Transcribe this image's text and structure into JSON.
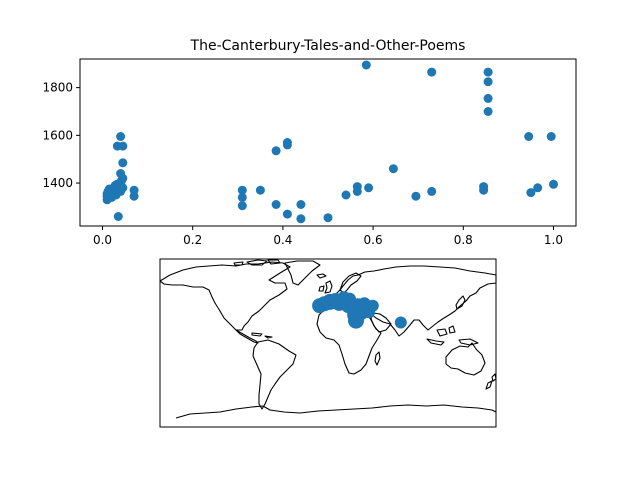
{
  "chart_data": [
    {
      "type": "scatter",
      "title": "The-Canterbury-Tales-and-Other-Poems",
      "xlabel": "",
      "ylabel": "",
      "xlim": [
        -0.05,
        1.05
      ],
      "ylim": [
        1220,
        1920
      ],
      "x_ticks": [
        0.0,
        0.2,
        0.4,
        0.6,
        0.8,
        1.0
      ],
      "x_tick_labels": [
        "0.0",
        "0.2",
        "0.4",
        "0.6",
        "0.8",
        "1.0"
      ],
      "y_ticks": [
        1400,
        1600,
        1800
      ],
      "y_tick_labels": [
        "1400",
        "1600",
        "1800"
      ],
      "marker_color": "#1f77b4",
      "grid": false,
      "points": [
        {
          "x": 0.01,
          "y": 1355
        },
        {
          "x": 0.01,
          "y": 1345
        },
        {
          "x": 0.01,
          "y": 1330
        },
        {
          "x": 0.012,
          "y": 1365
        },
        {
          "x": 0.015,
          "y": 1375
        },
        {
          "x": 0.02,
          "y": 1360
        },
        {
          "x": 0.02,
          "y": 1340
        },
        {
          "x": 0.025,
          "y": 1380
        },
        {
          "x": 0.028,
          "y": 1390
        },
        {
          "x": 0.03,
          "y": 1350
        },
        {
          "x": 0.03,
          "y": 1370
        },
        {
          "x": 0.032,
          "y": 1395
        },
        {
          "x": 0.033,
          "y": 1555
        },
        {
          "x": 0.035,
          "y": 1260
        },
        {
          "x": 0.035,
          "y": 1375
        },
        {
          "x": 0.038,
          "y": 1400
        },
        {
          "x": 0.04,
          "y": 1365
        },
        {
          "x": 0.04,
          "y": 1385
        },
        {
          "x": 0.04,
          "y": 1440
        },
        {
          "x": 0.04,
          "y": 1595
        },
        {
          "x": 0.042,
          "y": 1410
        },
        {
          "x": 0.045,
          "y": 1380
        },
        {
          "x": 0.045,
          "y": 1555
        },
        {
          "x": 0.045,
          "y": 1485
        },
        {
          "x": 0.045,
          "y": 1420
        },
        {
          "x": 0.07,
          "y": 1370
        },
        {
          "x": 0.07,
          "y": 1345
        },
        {
          "x": 0.31,
          "y": 1370
        },
        {
          "x": 0.31,
          "y": 1340
        },
        {
          "x": 0.31,
          "y": 1305
        },
        {
          "x": 0.35,
          "y": 1370
        },
        {
          "x": 0.385,
          "y": 1535
        },
        {
          "x": 0.385,
          "y": 1310
        },
        {
          "x": 0.41,
          "y": 1560
        },
        {
          "x": 0.41,
          "y": 1570
        },
        {
          "x": 0.41,
          "y": 1270
        },
        {
          "x": 0.44,
          "y": 1310
        },
        {
          "x": 0.44,
          "y": 1250
        },
        {
          "x": 0.5,
          "y": 1255
        },
        {
          "x": 0.54,
          "y": 1350
        },
        {
          "x": 0.565,
          "y": 1385
        },
        {
          "x": 0.565,
          "y": 1365
        },
        {
          "x": 0.585,
          "y": 1895
        },
        {
          "x": 0.59,
          "y": 1380
        },
        {
          "x": 0.645,
          "y": 1460
        },
        {
          "x": 0.695,
          "y": 1345
        },
        {
          "x": 0.73,
          "y": 1865
        },
        {
          "x": 0.73,
          "y": 1365
        },
        {
          "x": 0.845,
          "y": 1385
        },
        {
          "x": 0.845,
          "y": 1370
        },
        {
          "x": 0.855,
          "y": 1865
        },
        {
          "x": 0.855,
          "y": 1825
        },
        {
          "x": 0.855,
          "y": 1755
        },
        {
          "x": 0.855,
          "y": 1700
        },
        {
          "x": 0.945,
          "y": 1595
        },
        {
          "x": 0.95,
          "y": 1360
        },
        {
          "x": 0.965,
          "y": 1380
        },
        {
          "x": 0.995,
          "y": 1595
        },
        {
          "x": 1.0,
          "y": 1395
        }
      ]
    },
    {
      "type": "scatter",
      "title": "",
      "marker_color": "#1f77b4",
      "locations": [
        {
          "lon": -9,
          "lat": 40,
          "weight": 0.9
        },
        {
          "lon": -4,
          "lat": 42,
          "weight": 0.9
        },
        {
          "lon": 2,
          "lat": 44,
          "weight": 1.0
        },
        {
          "lon": 8,
          "lat": 45,
          "weight": 1.0
        },
        {
          "lon": 12,
          "lat": 43,
          "weight": 1.0
        },
        {
          "lon": 17,
          "lat": 48,
          "weight": 0.8
        },
        {
          "lon": 22,
          "lat": 40,
          "weight": 0.9
        },
        {
          "lon": 23,
          "lat": 47,
          "weight": 0.7
        },
        {
          "lon": 28,
          "lat": 41,
          "weight": 0.7
        },
        {
          "lon": 28,
          "lat": 30,
          "weight": 0.8
        },
        {
          "lon": 32,
          "lat": 40,
          "weight": 0.9
        },
        {
          "lon": 35,
          "lat": 33,
          "weight": 1.0
        },
        {
          "lon": 36,
          "lat": 36,
          "weight": 0.8
        },
        {
          "lon": 39,
          "lat": 42,
          "weight": 0.7
        },
        {
          "lon": 44,
          "lat": 33,
          "weight": 0.6
        },
        {
          "lon": 48,
          "lat": 40,
          "weight": 0.6
        },
        {
          "lon": 30,
          "lat": 24,
          "weight": 1.0
        },
        {
          "lon": 78,
          "lat": 22,
          "weight": 0.6
        }
      ]
    }
  ]
}
